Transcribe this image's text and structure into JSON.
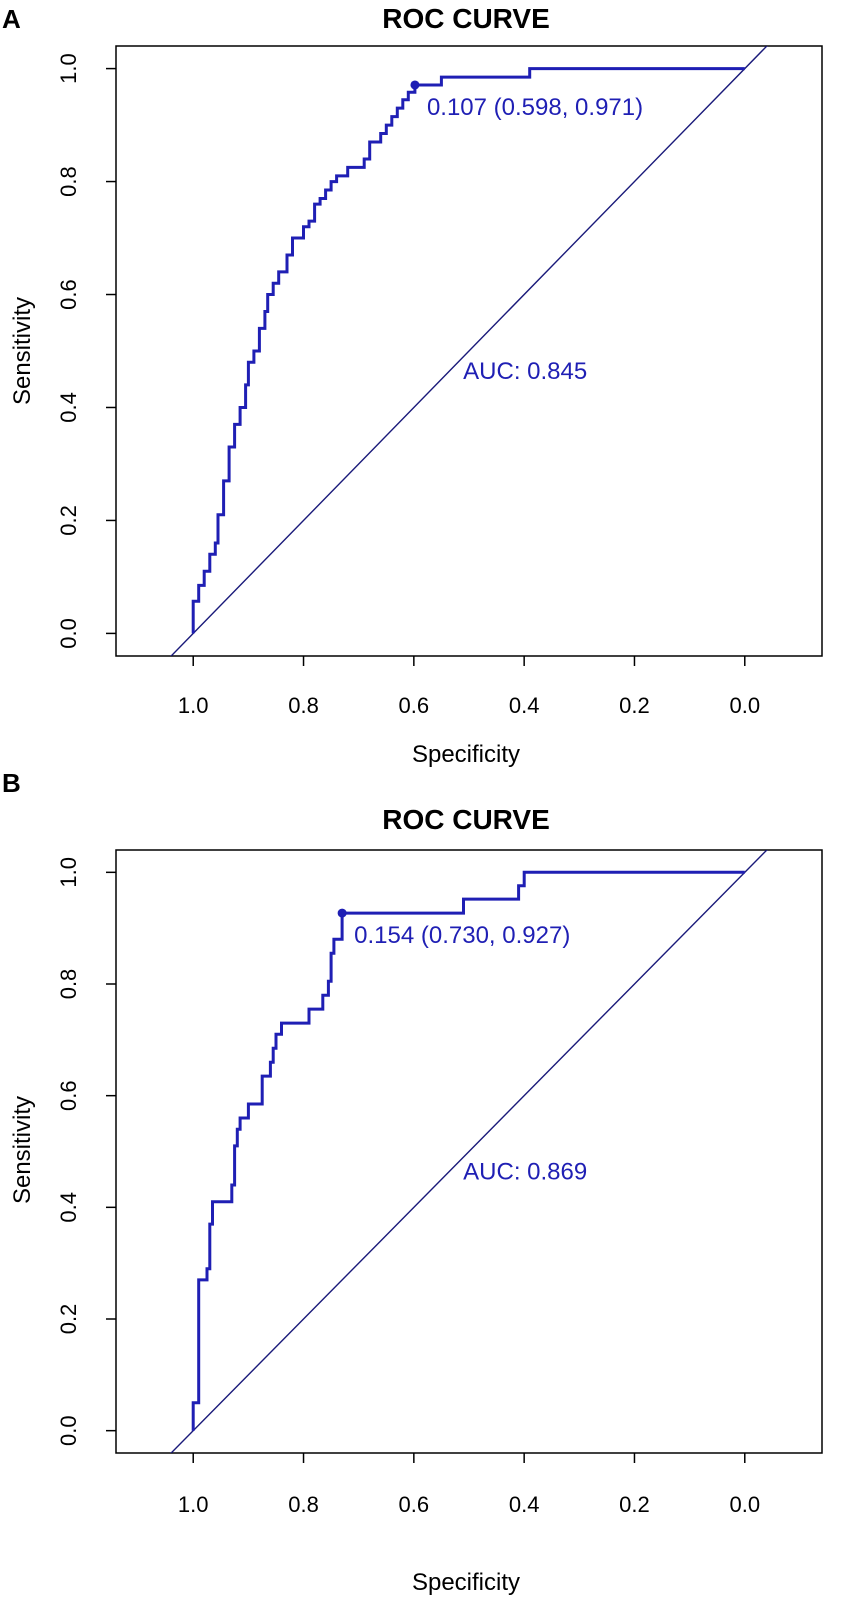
{
  "chart_data": [
    {
      "panel_label": "A",
      "type": "line",
      "title": "ROC CURVE",
      "xlabel": "Specificity",
      "ylabel": "Sensitivity",
      "xlim": [
        1.14,
        -0.14
      ],
      "ylim": [
        -0.04,
        1.04
      ],
      "x_ticks": [
        1.0,
        0.8,
        0.6,
        0.4,
        0.2,
        0.0
      ],
      "x_tick_labels": [
        "1.0",
        "0.8",
        "0.6",
        "0.4",
        "0.2",
        "0.0"
      ],
      "y_ticks": [
        0.0,
        0.2,
        0.4,
        0.6,
        0.8,
        1.0
      ],
      "y_tick_labels": [
        "0.0",
        "0.2",
        "0.4",
        "0.6",
        "0.8",
        "1.0"
      ],
      "curve_color": "#1f1fb4",
      "diagonal_color": "#1a1a7a",
      "series": [
        {
          "name": "ROC",
          "points": [
            [
              1.0,
              0.0
            ],
            [
              1.0,
              0.057
            ],
            [
              0.99,
              0.057
            ],
            [
              0.99,
              0.085
            ],
            [
              0.98,
              0.085
            ],
            [
              0.98,
              0.11
            ],
            [
              0.97,
              0.11
            ],
            [
              0.97,
              0.14
            ],
            [
              0.96,
              0.14
            ],
            [
              0.96,
              0.16
            ],
            [
              0.955,
              0.16
            ],
            [
              0.955,
              0.21
            ],
            [
              0.945,
              0.21
            ],
            [
              0.945,
              0.27
            ],
            [
              0.935,
              0.27
            ],
            [
              0.935,
              0.33
            ],
            [
              0.925,
              0.33
            ],
            [
              0.925,
              0.37
            ],
            [
              0.915,
              0.37
            ],
            [
              0.915,
              0.4
            ],
            [
              0.905,
              0.4
            ],
            [
              0.905,
              0.44
            ],
            [
              0.9,
              0.44
            ],
            [
              0.9,
              0.48
            ],
            [
              0.89,
              0.48
            ],
            [
              0.89,
              0.5
            ],
            [
              0.88,
              0.5
            ],
            [
              0.88,
              0.54
            ],
            [
              0.87,
              0.54
            ],
            [
              0.87,
              0.57
            ],
            [
              0.865,
              0.57
            ],
            [
              0.865,
              0.6
            ],
            [
              0.855,
              0.6
            ],
            [
              0.855,
              0.62
            ],
            [
              0.845,
              0.62
            ],
            [
              0.845,
              0.64
            ],
            [
              0.83,
              0.64
            ],
            [
              0.83,
              0.67
            ],
            [
              0.82,
              0.67
            ],
            [
              0.82,
              0.7
            ],
            [
              0.8,
              0.7
            ],
            [
              0.8,
              0.72
            ],
            [
              0.79,
              0.72
            ],
            [
              0.79,
              0.73
            ],
            [
              0.78,
              0.73
            ],
            [
              0.78,
              0.76
            ],
            [
              0.77,
              0.76
            ],
            [
              0.77,
              0.77
            ],
            [
              0.76,
              0.77
            ],
            [
              0.76,
              0.785
            ],
            [
              0.75,
              0.785
            ],
            [
              0.75,
              0.8
            ],
            [
              0.74,
              0.8
            ],
            [
              0.74,
              0.81
            ],
            [
              0.72,
              0.81
            ],
            [
              0.72,
              0.825
            ],
            [
              0.69,
              0.825
            ],
            [
              0.69,
              0.84
            ],
            [
              0.68,
              0.84
            ],
            [
              0.68,
              0.87
            ],
            [
              0.66,
              0.87
            ],
            [
              0.66,
              0.885
            ],
            [
              0.65,
              0.885
            ],
            [
              0.65,
              0.9
            ],
            [
              0.64,
              0.9
            ],
            [
              0.64,
              0.915
            ],
            [
              0.63,
              0.915
            ],
            [
              0.63,
              0.93
            ],
            [
              0.62,
              0.93
            ],
            [
              0.62,
              0.945
            ],
            [
              0.61,
              0.945
            ],
            [
              0.61,
              0.958
            ],
            [
              0.598,
              0.958
            ],
            [
              0.598,
              0.971
            ],
            [
              0.55,
              0.971
            ],
            [
              0.55,
              0.985
            ],
            [
              0.39,
              0.985
            ],
            [
              0.39,
              1.0
            ],
            [
              0.0,
              1.0
            ]
          ]
        }
      ],
      "threshold_point": {
        "x": 0.598,
        "y": 0.971
      },
      "threshold_label": "0.107 (0.598, 0.971)",
      "auc_label": "AUC: 0.845",
      "auc_label_pos": {
        "x": 0.4,
        "y": 0.45
      }
    },
    {
      "panel_label": "B",
      "type": "line",
      "title": "ROC CURVE",
      "xlabel": "Specificity",
      "ylabel": "Sensitivity",
      "xlim": [
        1.14,
        -0.14
      ],
      "ylim": [
        -0.04,
        1.04
      ],
      "x_ticks": [
        1.0,
        0.8,
        0.6,
        0.4,
        0.2,
        0.0
      ],
      "x_tick_labels": [
        "1.0",
        "0.8",
        "0.6",
        "0.4",
        "0.2",
        "0.0"
      ],
      "y_ticks": [
        0.0,
        0.2,
        0.4,
        0.6,
        0.8,
        1.0
      ],
      "y_tick_labels": [
        "0.0",
        "0.2",
        "0.4",
        "0.6",
        "0.8",
        "1.0"
      ],
      "curve_color": "#1f1fb4",
      "diagonal_color": "#1a1a7a",
      "series": [
        {
          "name": "ROC",
          "points": [
            [
              1.0,
              0.0
            ],
            [
              1.0,
              0.05
            ],
            [
              0.99,
              0.05
            ],
            [
              0.99,
              0.27
            ],
            [
              0.975,
              0.27
            ],
            [
              0.975,
              0.29
            ],
            [
              0.97,
              0.29
            ],
            [
              0.97,
              0.37
            ],
            [
              0.965,
              0.37
            ],
            [
              0.965,
              0.41
            ],
            [
              0.93,
              0.41
            ],
            [
              0.93,
              0.44
            ],
            [
              0.925,
              0.44
            ],
            [
              0.925,
              0.51
            ],
            [
              0.92,
              0.51
            ],
            [
              0.92,
              0.54
            ],
            [
              0.915,
              0.54
            ],
            [
              0.915,
              0.56
            ],
            [
              0.9,
              0.56
            ],
            [
              0.9,
              0.585
            ],
            [
              0.875,
              0.585
            ],
            [
              0.875,
              0.635
            ],
            [
              0.86,
              0.635
            ],
            [
              0.86,
              0.66
            ],
            [
              0.855,
              0.66
            ],
            [
              0.855,
              0.685
            ],
            [
              0.85,
              0.685
            ],
            [
              0.85,
              0.71
            ],
            [
              0.84,
              0.71
            ],
            [
              0.84,
              0.73
            ],
            [
              0.79,
              0.73
            ],
            [
              0.79,
              0.755
            ],
            [
              0.765,
              0.755
            ],
            [
              0.765,
              0.78
            ],
            [
              0.755,
              0.78
            ],
            [
              0.755,
              0.805
            ],
            [
              0.75,
              0.805
            ],
            [
              0.75,
              0.855
            ],
            [
              0.745,
              0.855
            ],
            [
              0.745,
              0.88
            ],
            [
              0.73,
              0.88
            ],
            [
              0.73,
              0.927
            ],
            [
              0.51,
              0.927
            ],
            [
              0.51,
              0.952
            ],
            [
              0.41,
              0.952
            ],
            [
              0.41,
              0.976
            ],
            [
              0.4,
              0.976
            ],
            [
              0.4,
              1.0
            ],
            [
              0.0,
              1.0
            ]
          ]
        }
      ],
      "threshold_point": {
        "x": 0.73,
        "y": 0.927
      },
      "threshold_label": "0.154 (0.730, 0.927)",
      "auc_label": "AUC: 0.869",
      "auc_label_pos": {
        "x": 0.4,
        "y": 0.45
      }
    }
  ]
}
